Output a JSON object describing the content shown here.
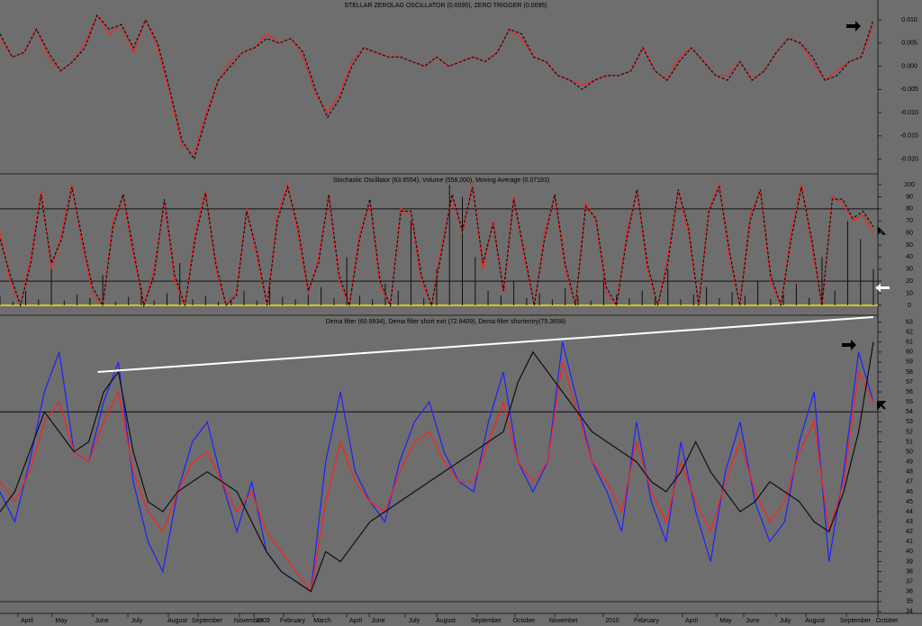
{
  "chart_data": [
    {
      "type": "line",
      "title": "STELLAR ZEROLAG OSCILLATOR (0.0095), ZERO TRIGGER (0.0095)",
      "ylim": [
        -0.023,
        0.0143
      ],
      "yticks": [
        {
          "value": 0.01,
          "label": "0.010"
        },
        {
          "value": 0.005,
          "label": "0.005"
        },
        {
          "value": 0.0,
          "label": "0.000"
        },
        {
          "value": -0.005,
          "label": "-0.005"
        },
        {
          "value": -0.01,
          "label": "-0.010"
        },
        {
          "value": -0.015,
          "label": "-0.015"
        },
        {
          "value": -0.02,
          "label": "-0.020"
        }
      ],
      "series": [
        {
          "color": "#ff2020",
          "dash": false,
          "values": [
            0.006,
            0.002,
            0.003,
            0.008,
            0.002,
            -0.001,
            0.001,
            0.005,
            0.011,
            0.007,
            0.009,
            0.003,
            0.01,
            0.004,
            -0.006,
            -0.017,
            -0.019,
            -0.01,
            -0.003,
            0.001,
            0.003,
            0.004,
            0.007,
            0.005,
            0.006,
            0.002,
            -0.006,
            -0.01,
            -0.006,
            0.001,
            0.004,
            0.003,
            0.002,
            0.002,
            0.001,
            0.0,
            0.002,
            0.0,
            0.001,
            0.002,
            0.001,
            0.003,
            0.008,
            0.006,
            0.002,
            0.001,
            -0.002,
            -0.003,
            -0.004,
            -0.003,
            -0.002,
            -0.002,
            -0.001,
            0.004,
            -0.001,
            -0.003,
            0.002,
            0.004,
            0.001,
            -0.002,
            -0.002,
            0.001,
            -0.003,
            -0.001,
            0.003,
            0.006,
            0.005,
            0.001,
            -0.003,
            -0.001,
            0.001,
            0.002,
            0.009
          ]
        },
        {
          "color": "#101010",
          "dash": true,
          "values": [
            0.007,
            0.002,
            0.003,
            0.008,
            0.003,
            -0.001,
            0.001,
            0.004,
            0.011,
            0.008,
            0.009,
            0.004,
            0.01,
            0.005,
            -0.005,
            -0.016,
            -0.02,
            -0.011,
            -0.003,
            0.0,
            0.003,
            0.004,
            0.006,
            0.005,
            0.006,
            0.003,
            -0.005,
            -0.011,
            -0.007,
            0.0,
            0.004,
            0.003,
            0.002,
            0.002,
            0.001,
            0.0,
            0.002,
            0.0,
            0.001,
            0.002,
            0.001,
            0.003,
            0.008,
            0.007,
            0.002,
            0.001,
            -0.002,
            -0.003,
            -0.005,
            -0.003,
            -0.002,
            -0.002,
            -0.001,
            0.004,
            -0.001,
            -0.003,
            0.001,
            0.004,
            0.001,
            -0.002,
            -0.003,
            0.001,
            -0.003,
            -0.001,
            0.003,
            0.006,
            0.005,
            0.002,
            -0.003,
            -0.002,
            0.001,
            0.002,
            0.01
          ]
        }
      ]
    },
    {
      "type": "line",
      "title": "Stochastic Oscillator (63.8554), Volume (558,000), Moving Average (0.07193)",
      "ylim": [
        -7.5,
        107.5
      ],
      "yticks": [
        0,
        10,
        20,
        30,
        40,
        50,
        60,
        70,
        80,
        90,
        100
      ],
      "hlines": [
        80,
        20
      ],
      "baseline": 0,
      "series": [
        {
          "color": "#ff2020",
          "dash": false,
          "values": [
            60,
            20,
            0,
            40,
            95,
            30,
            60,
            100,
            50,
            10,
            0,
            70,
            90,
            40,
            0,
            30,
            85,
            20,
            0,
            60,
            95,
            30,
            0,
            10,
            80,
            40,
            0,
            75,
            100,
            60,
            10,
            40,
            90,
            20,
            0,
            60,
            85,
            15,
            0,
            80,
            75,
            20,
            0,
            50,
            90,
            60,
            100,
            30,
            70,
            10,
            90,
            40,
            0,
            60,
            90,
            30,
            0,
            85,
            70,
            10,
            0,
            60,
            95,
            30,
            0,
            40,
            95,
            60,
            0,
            80,
            100,
            40,
            0,
            75,
            95,
            20,
            0,
            60,
            100,
            50,
            0,
            90,
            85,
            70,
            75,
            60
          ]
        },
        {
          "color": "#101010",
          "dash": true,
          "values": [
            55,
            25,
            0,
            35,
            92,
            35,
            55,
            98,
            55,
            15,
            0,
            65,
            92,
            45,
            0,
            25,
            88,
            25,
            0,
            55,
            93,
            35,
            0,
            8,
            78,
            45,
            0,
            70,
            98,
            65,
            12,
            35,
            92,
            25,
            0,
            55,
            88,
            20,
            0,
            78,
            78,
            25,
            0,
            45,
            92,
            62,
            98,
            35,
            68,
            12,
            88,
            45,
            0,
            55,
            92,
            35,
            0,
            82,
            72,
            15,
            0,
            55,
            96,
            35,
            0,
            35,
            96,
            65,
            0,
            78,
            98,
            45,
            0,
            70,
            96,
            25,
            0,
            55,
            98,
            55,
            0,
            88,
            88,
            72,
            78,
            65
          ]
        },
        {
          "color": "#101010",
          "kind": "bar",
          "values": [
            8,
            3,
            12,
            5,
            30,
            4,
            9,
            6,
            25,
            3,
            7,
            14,
            4,
            10,
            35,
            5,
            8,
            3,
            6,
            12,
            4,
            22,
            7,
            5,
            9,
            15,
            6,
            40,
            8,
            5,
            18,
            12,
            70,
            6,
            30,
            100,
            90,
            40,
            12,
            8,
            20,
            6,
            10,
            5,
            14,
            8,
            4,
            25,
            9,
            6,
            12,
            7,
            30,
            5,
            9,
            15,
            6,
            11,
            8,
            20,
            5,
            9,
            18,
            6,
            40,
            12,
            70,
            55,
            30
          ]
        }
      ]
    },
    {
      "type": "line",
      "title": "Dema filter (60.9934), Dema filter short exit (72.8409), Dema filter shortentry(75.3658)",
      "ylim": [
        33.9,
        63.5
      ],
      "yticks": [
        34,
        35,
        36,
        37,
        38,
        39,
        40,
        41,
        42,
        43,
        44,
        45,
        46,
        47,
        48,
        49,
        50,
        51,
        52,
        53,
        54,
        55,
        56,
        57,
        58,
        59,
        60,
        61,
        62,
        63
      ],
      "hlines": [
        54
      ],
      "trendline": {
        "x": [
          6.6,
          59
        ],
        "y": [
          58,
          63.5
        ]
      },
      "xticklabels": [
        "April",
        "May",
        "June",
        "July",
        "August",
        "September",
        "November",
        "2009",
        "February",
        "March",
        "April",
        "June",
        "July",
        "August",
        "September",
        "October",
        "November",
        "2010",
        "February",
        "April",
        "May",
        "June",
        "July",
        "August",
        "September",
        "October"
      ],
      "series": [
        {
          "color": "#2020ff",
          "values": [
            46,
            43,
            49,
            56,
            60,
            50,
            49,
            55,
            59,
            47,
            41,
            38,
            46,
            51,
            53,
            47,
            42,
            47,
            40,
            38,
            37,
            36,
            49,
            56,
            48,
            45,
            43,
            49,
            53,
            55,
            50,
            47,
            46,
            53,
            58,
            49,
            46,
            49,
            61,
            55,
            49,
            46,
            42,
            53,
            45,
            41,
            51,
            44,
            39,
            48,
            53,
            45,
            41,
            43,
            51,
            56,
            39,
            48,
            60,
            55
          ]
        },
        {
          "color": "#ff2020",
          "values": [
            47,
            45,
            48,
            53,
            55,
            50,
            49,
            53,
            56,
            48,
            44,
            42,
            46,
            49,
            50,
            47,
            44,
            46,
            42,
            40,
            38,
            36,
            45,
            51,
            47,
            45,
            44,
            48,
            51,
            52,
            49,
            47,
            47,
            51,
            55,
            49,
            47,
            49,
            59,
            54,
            49,
            47,
            44,
            51,
            46,
            43,
            49,
            45,
            42,
            47,
            51,
            46,
            43,
            45,
            50,
            53,
            42,
            47,
            58,
            55
          ]
        },
        {
          "color": "#101010",
          "values": [
            44,
            46,
            50,
            54,
            52,
            50,
            51,
            56,
            58,
            50,
            45,
            44,
            46,
            47,
            48,
            47,
            46,
            43,
            40,
            38,
            37,
            36,
            40,
            39,
            41,
            43,
            44,
            45,
            46,
            47,
            48,
            49,
            50,
            51,
            52,
            57,
            60,
            58,
            56,
            54,
            52,
            51,
            50,
            49,
            47,
            46,
            48,
            51,
            48,
            46,
            44,
            45,
            47,
            46,
            45,
            43,
            42,
            46,
            52,
            61
          ]
        }
      ]
    }
  ]
}
